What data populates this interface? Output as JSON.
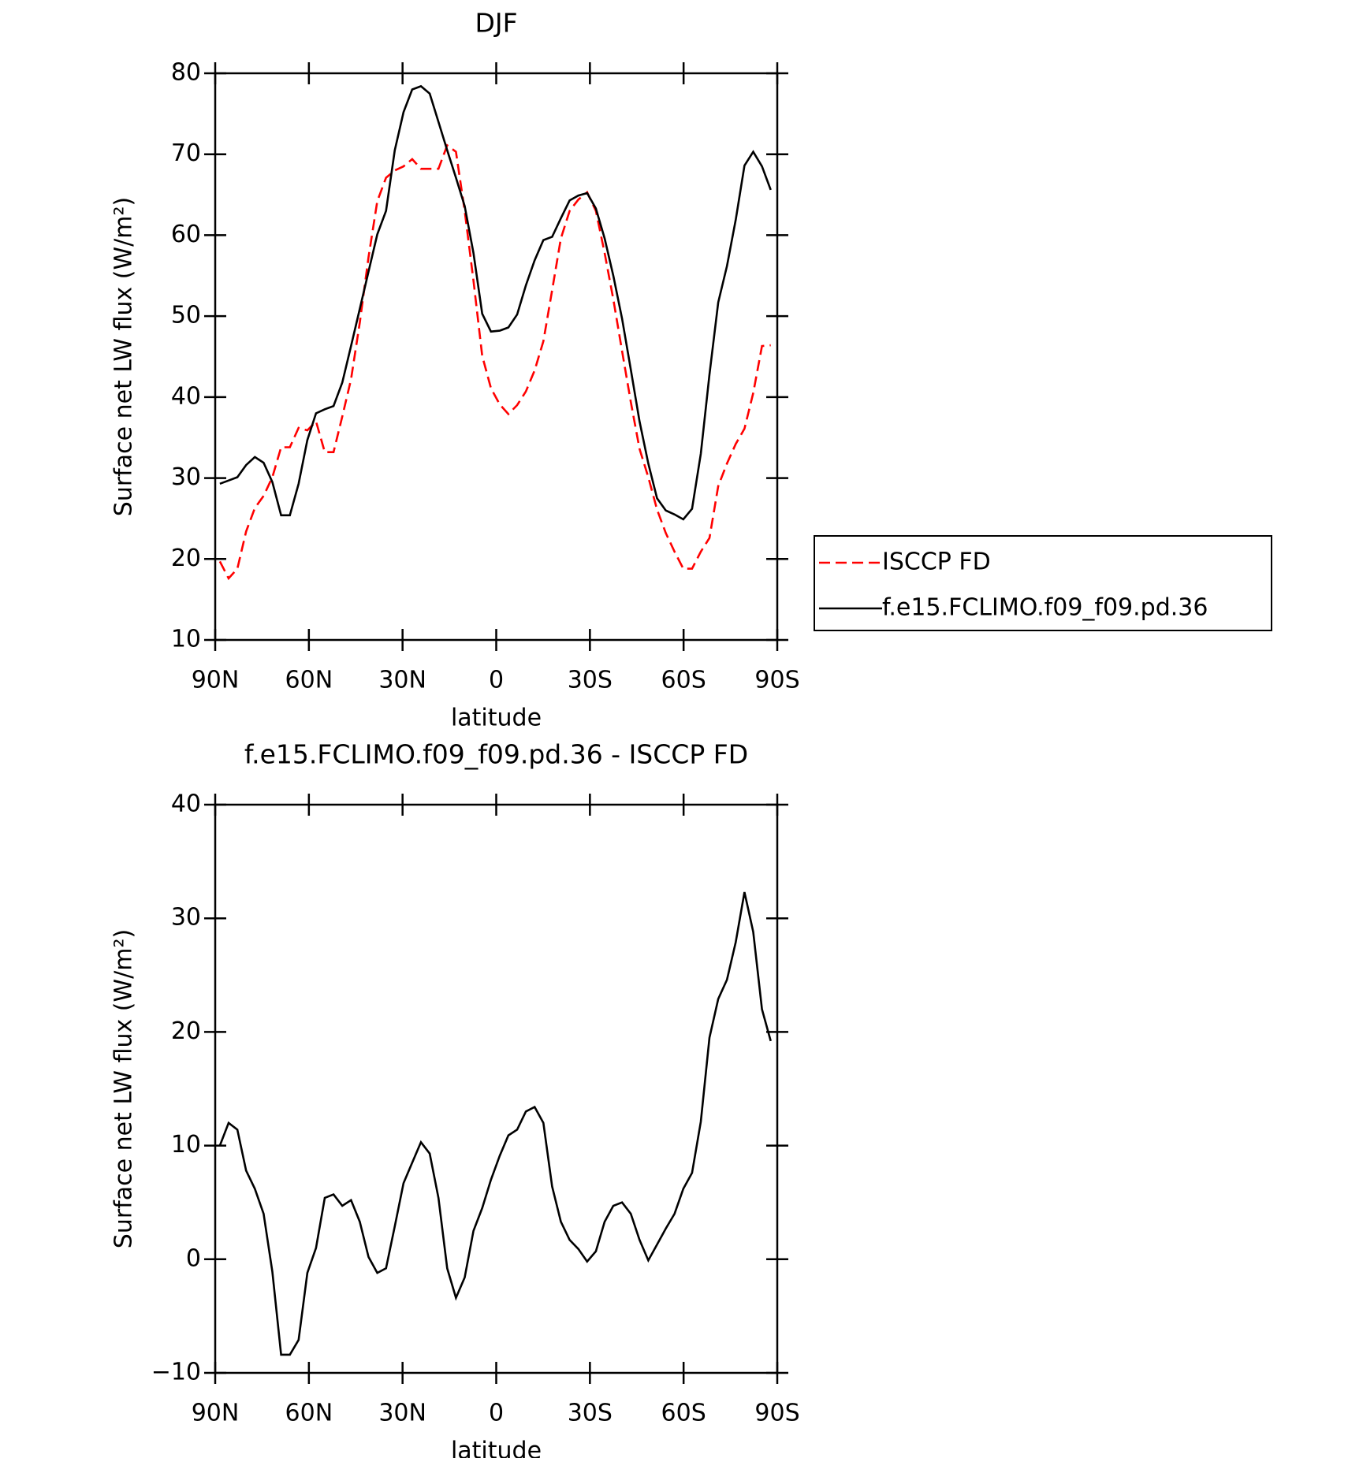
{
  "chart_data": [
    {
      "type": "line",
      "title": "DJF",
      "xlabel": "latitude",
      "ylabel": "Surface net LW flux (W/m²)",
      "xlim": [
        90,
        -90
      ],
      "xticks": [
        {
          "value": 90,
          "label": "90N"
        },
        {
          "value": 60,
          "label": "60N"
        },
        {
          "value": 30,
          "label": "30N"
        },
        0,
        {
          "value": -30,
          "label": "30S"
        },
        {
          "value": -60,
          "label": "60S"
        },
        {
          "value": -90,
          "label": "90S"
        }
      ],
      "ylim": [
        10,
        80
      ],
      "yticks": [
        10,
        20,
        30,
        40,
        50,
        60,
        70,
        80
      ],
      "legend": "right",
      "x": [
        88.5,
        85.7,
        82.9,
        80.1,
        77.3,
        74.5,
        71.7,
        68.9,
        66.1,
        63.3,
        60.5,
        57.7,
        54.9,
        52.1,
        49.3,
        46.5,
        43.7,
        40.9,
        38.1,
        35.3,
        32.5,
        29.7,
        26.9,
        24.1,
        21.3,
        18.5,
        15.7,
        12.9,
        10.1,
        7.3,
        4.5,
        1.7,
        -1.1,
        -3.9,
        -6.7,
        -9.5,
        -12.3,
        -15.1,
        -17.9,
        -20.7,
        -23.5,
        -26.3,
        -29.1,
        -31.9,
        -34.7,
        -37.5,
        -40.3,
        -43.1,
        -45.9,
        -48.7,
        -51.5,
        -54.3,
        -57.1,
        -59.9,
        -62.7,
        -65.5,
        -68.3,
        -71.1,
        -73.9,
        -76.7,
        -79.5,
        -82.3,
        -85.1,
        -87.9
      ],
      "series": [
        {
          "name": "ISCCP FD",
          "color": "#ff0000",
          "style": "dashed",
          "values": [
            19.7,
            17.6,
            18.8,
            23.4,
            26.3,
            27.8,
            30.1,
            33.8,
            33.8,
            36.2,
            35.9,
            37.0,
            33.2,
            33.2,
            37.6,
            42.2,
            49.2,
            57.3,
            64.2,
            67.1,
            68.0,
            68.5,
            69.4,
            68.2,
            68.2,
            68.2,
            71.1,
            70.3,
            63.0,
            54.4,
            45.1,
            41.1,
            39.1,
            37.9,
            39.0,
            40.7,
            43.3,
            46.9,
            53.2,
            59.6,
            63.0,
            64.4,
            65.3,
            63.0,
            57.8,
            52.1,
            45.7,
            39.4,
            33.6,
            30.1,
            26.1,
            23.2,
            20.9,
            18.8,
            18.8,
            20.9,
            22.6,
            29.0,
            31.8,
            34.2,
            36.1,
            40.5,
            46.3,
            46.4
          ]
        },
        {
          "name": "f.e15.FCLIMO.f09_f09.pd.36",
          "color": "#000000",
          "style": "solid",
          "values": [
            29.3,
            29.7,
            30.1,
            31.6,
            32.6,
            31.9,
            29.5,
            25.4,
            25.4,
            29.3,
            34.7,
            38.0,
            38.5,
            38.9,
            41.8,
            46.3,
            50.9,
            55.5,
            60.1,
            63.0,
            70.5,
            75.2,
            78.0,
            78.4,
            77.5,
            74.0,
            70.5,
            67.1,
            63.6,
            57.8,
            50.3,
            48.1,
            48.2,
            48.6,
            50.2,
            53.8,
            56.9,
            59.4,
            59.8,
            62.1,
            64.3,
            64.9,
            65.2,
            63.3,
            59.6,
            55.0,
            49.7,
            43.4,
            37.0,
            31.8,
            27.5,
            26.0,
            25.5,
            24.9,
            26.2,
            33.0,
            42.8,
            51.7,
            56.2,
            61.9,
            68.6,
            70.3,
            68.5,
            65.6
          ]
        }
      ]
    },
    {
      "type": "line",
      "title": "f.e15.FCLIMO.f09_f09.pd.36 - ISCCP FD",
      "xlabel": "latitude",
      "ylabel": "Surface net LW flux (W/m²)",
      "xlim": [
        90,
        -90
      ],
      "xticks": [
        {
          "value": 90,
          "label": "90N"
        },
        {
          "value": 60,
          "label": "60N"
        },
        {
          "value": 30,
          "label": "30N"
        },
        0,
        {
          "value": -30,
          "label": "30S"
        },
        {
          "value": -60,
          "label": "60S"
        },
        {
          "value": -90,
          "label": "90S"
        }
      ],
      "ylim": [
        -10,
        40
      ],
      "yticks": [
        {
          "value": -10,
          "label": "−10"
        },
        0,
        10,
        20,
        30,
        40
      ],
      "x": [
        88.5,
        85.7,
        82.9,
        80.1,
        77.3,
        74.5,
        71.7,
        68.9,
        66.1,
        63.3,
        60.5,
        57.7,
        54.9,
        52.1,
        49.3,
        46.5,
        43.7,
        40.9,
        38.1,
        35.3,
        32.5,
        29.7,
        26.9,
        24.1,
        21.3,
        18.5,
        15.7,
        12.9,
        10.1,
        7.3,
        4.5,
        1.7,
        -1.1,
        -3.9,
        -6.7,
        -9.5,
        -12.3,
        -15.1,
        -17.9,
        -20.7,
        -23.5,
        -26.3,
        -29.1,
        -31.9,
        -34.7,
        -37.5,
        -40.3,
        -43.1,
        -45.9,
        -48.7,
        -51.5,
        -54.3,
        -57.1,
        -59.9,
        -62.7,
        -65.5,
        -68.3,
        -71.1,
        -73.9,
        -76.7,
        -79.5,
        -82.3,
        -85.1,
        -87.9
      ],
      "series": [
        {
          "color": "#000000",
          "style": "solid",
          "values": [
            10.0,
            12.0,
            11.4,
            7.8,
            6.2,
            4.0,
            -1.1,
            -8.4,
            -8.4,
            -7.1,
            -1.2,
            1.0,
            5.4,
            5.7,
            4.7,
            5.2,
            3.3,
            0.2,
            -1.2,
            -0.8,
            2.9,
            6.7,
            8.5,
            10.3,
            9.3,
            5.4,
            -0.8,
            -3.4,
            -1.6,
            2.5,
            4.5,
            7.0,
            9.1,
            10.9,
            11.4,
            13.0,
            13.4,
            12.0,
            6.4,
            3.3,
            1.7,
            0.9,
            -0.2,
            0.7,
            3.3,
            4.7,
            5.0,
            4.0,
            1.7,
            -0.1,
            1.3,
            2.7,
            4.0,
            6.2,
            7.6,
            12.1,
            19.5,
            22.9,
            24.6,
            27.9,
            32.3,
            28.8,
            22.0,
            19.2
          ]
        }
      ]
    }
  ]
}
